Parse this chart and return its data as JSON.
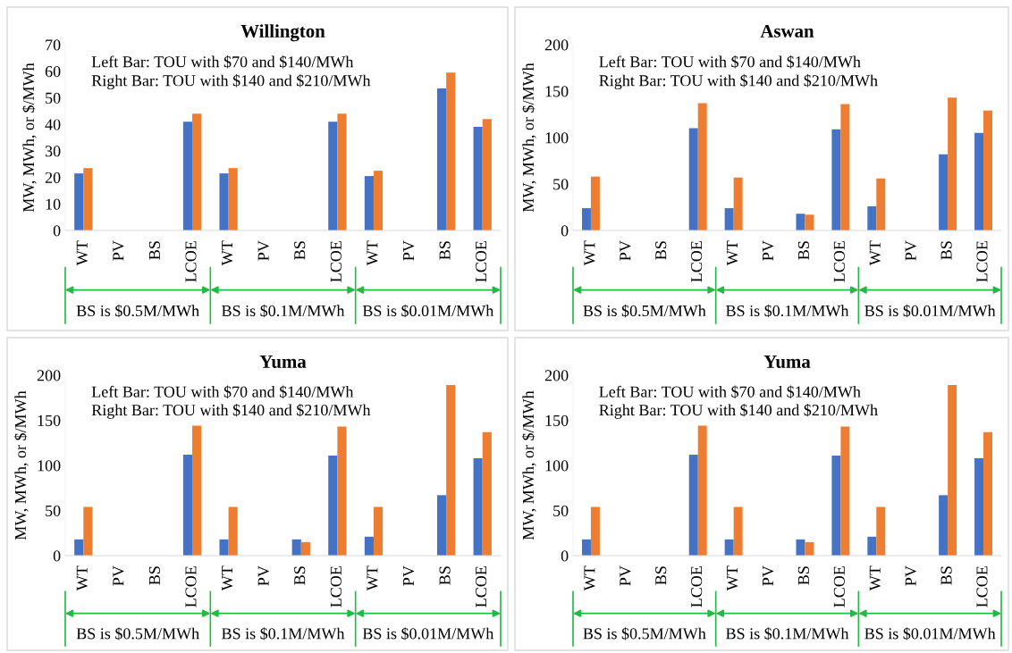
{
  "chart_data": [
    {
      "type": "bar",
      "title": "Willington",
      "ylabel": "MW, MWh, or $/MWh",
      "categories": [
        "WT",
        "PV",
        "BS",
        "LCOE",
        "WT",
        "PV",
        "BS",
        "LCOE",
        "WT",
        "PV",
        "BS",
        "LCOE"
      ],
      "series": [
        {
          "color": "#4472c4",
          "values": [
            21.5,
            0,
            0,
            41,
            21.5,
            0,
            0,
            41,
            20.5,
            0,
            53.5,
            39
          ]
        },
        {
          "color": "#ed7d31",
          "values": [
            23.5,
            0,
            0,
            44,
            23.5,
            0,
            0,
            44,
            22.5,
            0,
            59.5,
            42
          ]
        }
      ],
      "ylim": [
        0,
        70
      ],
      "yticks": [
        0,
        10,
        20,
        30,
        40,
        50,
        60,
        70
      ],
      "grid": false,
      "legend": false,
      "annotations": [
        "Left Bar: TOU with $70 and $140/MWh",
        "Right Bar: TOU with $140 and $210/MWh",
        "BS is $0.5M/MWh",
        "BS is $0.1M/MWh",
        "BS is $0.01M/MWh"
      ]
    },
    {
      "type": "bar",
      "title": "Aswan",
      "ylabel": "MW, MWh, or $/MWh",
      "categories": [
        "WT",
        "PV",
        "BS",
        "LCOE",
        "WT",
        "PV",
        "BS",
        "LCOE",
        "WT",
        "PV",
        "BS",
        "LCOE"
      ],
      "series": [
        {
          "color": "#4472c4",
          "values": [
            24,
            0,
            0,
            110,
            24,
            0,
            18,
            109,
            26,
            0,
            82,
            105
          ]
        },
        {
          "color": "#ed7d31",
          "values": [
            58,
            0,
            0,
            137,
            57,
            0,
            17,
            136,
            56,
            0,
            143,
            129
          ]
        }
      ],
      "ylim": [
        0,
        200
      ],
      "yticks": [
        0,
        50,
        100,
        150,
        200
      ],
      "grid": false,
      "legend": false,
      "annotations": [
        "Left Bar: TOU with $70 and $140/MWh",
        "Right Bar: TOU with $140 and $210/MWh",
        "BS is $0.5M/MWh",
        "BS is $0.1M/MWh",
        "BS is $0.01M/MWh"
      ]
    },
    {
      "type": "bar",
      "title": "Yuma",
      "ylabel": "MW, MWh, or $/MWh",
      "categories": [
        "WT",
        "PV",
        "BS",
        "LCOE",
        "WT",
        "PV",
        "BS",
        "LCOE",
        "WT",
        "PV",
        "BS",
        "LCOE"
      ],
      "series": [
        {
          "color": "#4472c4",
          "values": [
            18,
            0,
            0,
            112,
            18,
            0,
            18,
            111,
            21,
            0,
            67,
            108
          ]
        },
        {
          "color": "#ed7d31",
          "values": [
            54,
            0,
            0,
            144,
            54,
            0,
            15,
            143,
            54,
            0,
            189,
            137
          ]
        }
      ],
      "ylim": [
        0,
        200
      ],
      "yticks": [
        0,
        50,
        100,
        150,
        200
      ],
      "grid": false,
      "legend": false,
      "annotations": [
        "Left Bar: TOU with $70 and $140/MWh",
        "Right Bar: TOU with $140 and $210/MWh",
        "BS is $0.5M/MWh",
        "BS is $0.1M/MWh",
        "BS is $0.01M/MWh"
      ]
    },
    {
      "type": "bar",
      "title": "Yuma",
      "ylabel": "MW, MWh, or $/MWh",
      "categories": [
        "WT",
        "PV",
        "BS",
        "LCOE",
        "WT",
        "PV",
        "BS",
        "LCOE",
        "WT",
        "PV",
        "BS",
        "LCOE"
      ],
      "series": [
        {
          "color": "#4472c4",
          "values": [
            18,
            0,
            0,
            112,
            18,
            0,
            18,
            111,
            21,
            0,
            67,
            108
          ]
        },
        {
          "color": "#ed7d31",
          "values": [
            54,
            0,
            0,
            144,
            54,
            0,
            15,
            143,
            54,
            0,
            189,
            137
          ]
        }
      ],
      "ylim": [
        0,
        200
      ],
      "yticks": [
        0,
        50,
        100,
        150,
        200
      ],
      "grid": false,
      "legend": false,
      "annotations": [
        "Left Bar: TOU with $70 and $140/MWh",
        "Right Bar: TOU with $140 and $210/MWh",
        "BS is $0.5M/MWh",
        "BS is $0.1M/MWh",
        "BS is $0.01M/MWh"
      ]
    }
  ]
}
